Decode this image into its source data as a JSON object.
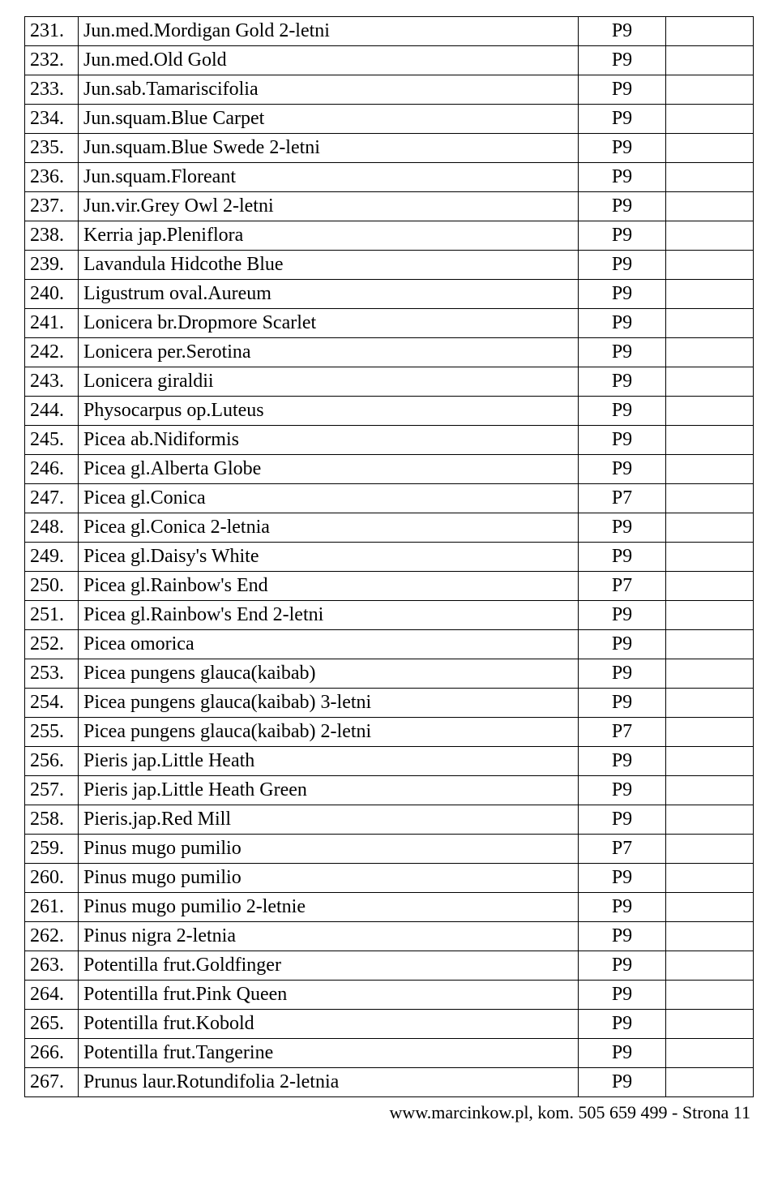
{
  "table": {
    "rows": [
      {
        "num": "231.",
        "name": "Jun.med.Mordigan Gold 2-letni",
        "code": "P9"
      },
      {
        "num": "232.",
        "name": "Jun.med.Old Gold",
        "code": "P9"
      },
      {
        "num": "233.",
        "name": "Jun.sab.Tamariscifolia",
        "code": "P9"
      },
      {
        "num": "234.",
        "name": "Jun.squam.Blue Carpet",
        "code": "P9"
      },
      {
        "num": "235.",
        "name": "Jun.squam.Blue Swede 2-letni",
        "code": "P9"
      },
      {
        "num": "236.",
        "name": "Jun.squam.Floreant",
        "code": "P9"
      },
      {
        "num": "237.",
        "name": "Jun.vir.Grey Owl 2-letni",
        "code": "P9"
      },
      {
        "num": "238.",
        "name": "Kerria jap.Pleniflora",
        "code": "P9"
      },
      {
        "num": "239.",
        "name": "Lavandula Hidcothe Blue",
        "code": "P9"
      },
      {
        "num": "240.",
        "name": "Ligustrum oval.Aureum",
        "code": "P9"
      },
      {
        "num": "241.",
        "name": "Lonicera br.Dropmore Scarlet",
        "code": "P9"
      },
      {
        "num": "242.",
        "name": "Lonicera per.Serotina",
        "code": "P9"
      },
      {
        "num": "243.",
        "name": "Lonicera giraldii",
        "code": "P9"
      },
      {
        "num": "244.",
        "name": "Physocarpus op.Luteus",
        "code": "P9"
      },
      {
        "num": "245.",
        "name": "Picea ab.Nidiformis",
        "code": "P9"
      },
      {
        "num": "246.",
        "name": "Picea gl.Alberta Globe",
        "code": "P9"
      },
      {
        "num": "247.",
        "name": "Picea gl.Conica",
        "code": "P7"
      },
      {
        "num": "248.",
        "name": "Picea gl.Conica 2-letnia",
        "code": "P9"
      },
      {
        "num": "249.",
        "name": "Picea gl.Daisy's White",
        "code": "P9"
      },
      {
        "num": "250.",
        "name": "Picea gl.Rainbow's End",
        "code": "P7"
      },
      {
        "num": "251.",
        "name": "Picea gl.Rainbow's End 2-letni",
        "code": "P9"
      },
      {
        "num": "252.",
        "name": "Picea omorica",
        "code": "P9"
      },
      {
        "num": "253.",
        "name": "Picea pungens glauca(kaibab)",
        "code": "P9"
      },
      {
        "num": "254.",
        "name": "Picea pungens glauca(kaibab) 3-letni",
        "code": "P9"
      },
      {
        "num": "255.",
        "name": "Picea pungens glauca(kaibab) 2-letni",
        "code": "P7"
      },
      {
        "num": "256.",
        "name": "Pieris jap.Little Heath",
        "code": "P9"
      },
      {
        "num": "257.",
        "name": "Pieris jap.Little Heath Green",
        "code": "P9"
      },
      {
        "num": "258.",
        "name": "Pieris.jap.Red Mill",
        "code": "P9"
      },
      {
        "num": "259.",
        "name": "Pinus mugo pumilio",
        "code": "P7"
      },
      {
        "num": "260.",
        "name": "Pinus mugo pumilio",
        "code": "P9"
      },
      {
        "num": "261.",
        "name": "Pinus mugo pumilio 2-letnie",
        "code": "P9"
      },
      {
        "num": "262.",
        "name": "Pinus nigra 2-letnia",
        "code": "P9"
      },
      {
        "num": "263.",
        "name": "Potentilla frut.Goldfinger",
        "code": "P9"
      },
      {
        "num": "264.",
        "name": "Potentilla frut.Pink Queen",
        "code": "P9"
      },
      {
        "num": "265.",
        "name": "Potentilla frut.Kobold",
        "code": "P9"
      },
      {
        "num": "266.",
        "name": "Potentilla frut.Tangerine",
        "code": "P9"
      },
      {
        "num": "267.",
        "name": "Prunus laur.Rotundifolia 2-letnia",
        "code": "P9"
      }
    ]
  },
  "footer": {
    "text": "www.marcinkow.pl, kom. 505 659 499   -  Strona 11"
  }
}
